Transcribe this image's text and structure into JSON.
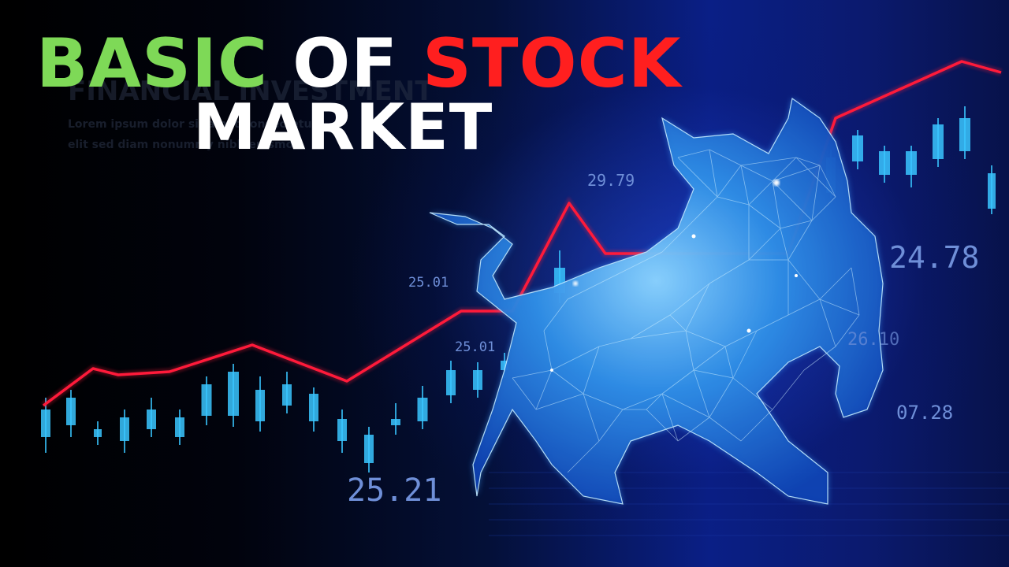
{
  "title": {
    "word_basic": "BASIC",
    "word_of": "OF",
    "word_stock": "STOCK",
    "line2": "MARKET",
    "colors": {
      "basic": "#7ed957",
      "of": "#ffffff",
      "stock": "#ff1f1f",
      "market": "#ffffff"
    }
  },
  "background_text": {
    "heading": "FINANCIAL INVESTMENT",
    "body_line_1": "Lorem ipsum dolor sit amet consectetur",
    "body_line_2": "elit sed diam nonummy nibh euismod"
  },
  "chart_labels": {
    "label_1": "29.79",
    "label_2": "25.01",
    "label_3": "25.01",
    "label_4": "24.78",
    "label_5": "07.28",
    "label_6": "25.21",
    "label_7": "26.10"
  },
  "illustration": {
    "subject": "low-poly-bull",
    "line_color": "#ff1a3a",
    "candle_color": "#39c6ff"
  }
}
